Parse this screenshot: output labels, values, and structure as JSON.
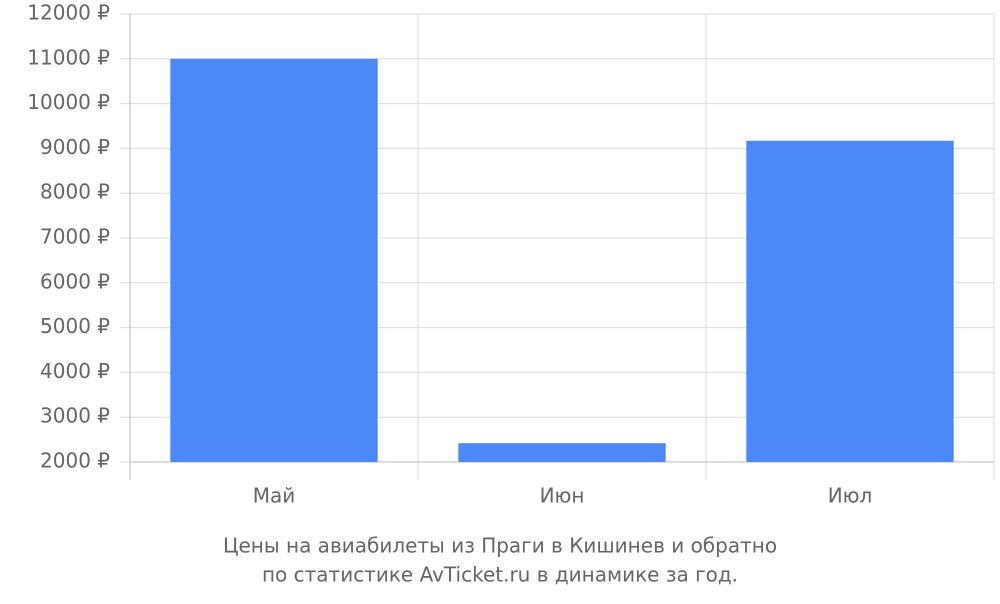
{
  "chart_data": {
    "type": "bar",
    "caption_lines": [
      "Цены на авиабилеты из Праги в Кишинев и обратно",
      "по статистике AvTicket.ru в динамике за год."
    ],
    "categories": [
      "Май",
      "Июн",
      "Июл"
    ],
    "values": [
      11000,
      2420,
      9170
    ],
    "color": "#4d88f9",
    "ylim": [
      2000,
      12000
    ],
    "yticks": [
      {
        "value": 2000,
        "label": "2000 ₽"
      },
      {
        "value": 3000,
        "label": "3000 ₽"
      },
      {
        "value": 4000,
        "label": "4000 ₽"
      },
      {
        "value": 5000,
        "label": "5000 ₽"
      },
      {
        "value": 6000,
        "label": "6000 ₽"
      },
      {
        "value": 7000,
        "label": "7000 ₽"
      },
      {
        "value": 8000,
        "label": "8000 ₽"
      },
      {
        "value": 9000,
        "label": "9000 ₽"
      },
      {
        "value": 10000,
        "label": "10000 ₽"
      },
      {
        "value": 11000,
        "label": "11000 ₽"
      },
      {
        "value": 12000,
        "label": "12000 ₽"
      }
    ],
    "grid": true
  }
}
